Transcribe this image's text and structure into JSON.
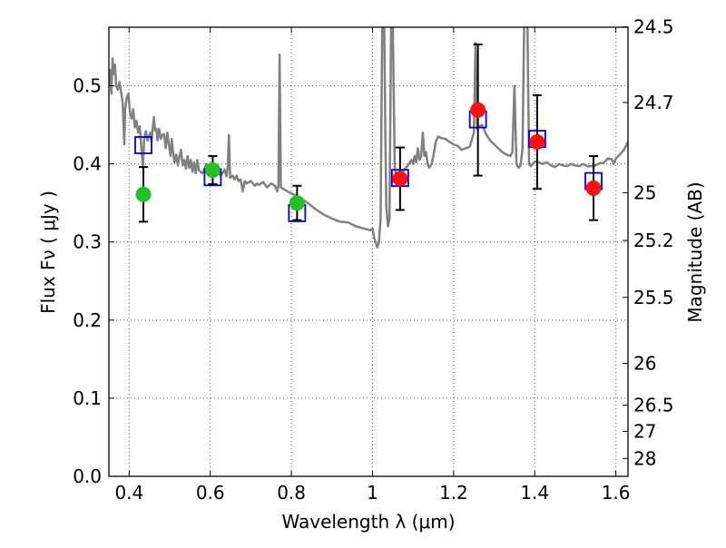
{
  "chart_data": {
    "type": "scatter",
    "title": "",
    "xlabel": "Wavelength  λ (μm)",
    "ylabel": "Flux  Fν  ( μJy )",
    "ylabel_right": "Magnitude (AB)",
    "xlim": [
      0.35,
      1.63
    ],
    "ylim": [
      0.0,
      0.575
    ],
    "grid": true,
    "x_ticks": [
      0.4,
      0.6,
      0.8,
      1.0,
      1.2,
      1.4,
      1.6
    ],
    "x_tick_labels": [
      "0.4",
      "0.6",
      "0.8",
      "1",
      "1.2",
      "1.4",
      "1.6"
    ],
    "y_ticks": [
      0.0,
      0.1,
      0.2,
      0.3,
      0.4,
      0.5
    ],
    "y_tick_labels": [
      "0.0",
      "0.1",
      "0.2",
      "0.3",
      "0.4",
      "0.5"
    ],
    "right_axis_ticks": [
      {
        "label": "24.5",
        "mag": 24.5
      },
      {
        "label": "24.7",
        "mag": 24.7
      },
      {
        "label": "25",
        "mag": 25.0
      },
      {
        "label": "25.2",
        "mag": 25.2
      },
      {
        "label": "25.5",
        "mag": 25.5
      },
      {
        "label": "26",
        "mag": 26.0
      },
      {
        "label": "26.5",
        "mag": 26.5
      },
      {
        "label": "27",
        "mag": 27.0
      },
      {
        "label": "28",
        "mag": 28.0
      }
    ],
    "observed_optical": {
      "marker": "filled-circle",
      "color": "#22c022",
      "points": [
        {
          "x": 0.435,
          "y": 0.361,
          "yerr": 0.035
        },
        {
          "x": 0.606,
          "y": 0.392,
          "yerr": 0.018
        },
        {
          "x": 0.814,
          "y": 0.35,
          "yerr": 0.022
        }
      ]
    },
    "observed_nir": {
      "marker": "filled-circle",
      "color": "#ff1010",
      "points": [
        {
          "x": 1.068,
          "y": 0.381,
          "yerr": 0.04
        },
        {
          "x": 1.26,
          "y": 0.469,
          "yerr": 0.084
        },
        {
          "x": 1.406,
          "y": 0.428,
          "yerr": 0.06
        },
        {
          "x": 1.545,
          "y": 0.369,
          "yerr": 0.041
        }
      ]
    },
    "model_photometry": {
      "marker": "open-square",
      "color": "#0000dd",
      "points": [
        {
          "x": 0.435,
          "y": 0.424
        },
        {
          "x": 0.606,
          "y": 0.383
        },
        {
          "x": 0.814,
          "y": 0.337
        },
        {
          "x": 1.068,
          "y": 0.382
        },
        {
          "x": 1.26,
          "y": 0.457
        },
        {
          "x": 1.406,
          "y": 0.432
        },
        {
          "x": 1.545,
          "y": 0.378
        }
      ]
    },
    "model_spectrum": {
      "type": "line",
      "color": "#808080",
      "points": [
        [
          0.35,
          0.5
        ],
        [
          0.353,
          0.52
        ],
        [
          0.356,
          0.49
        ],
        [
          0.359,
          0.535
        ],
        [
          0.362,
          0.515
        ],
        [
          0.365,
          0.527
        ],
        [
          0.368,
          0.5
        ],
        [
          0.372,
          0.495
        ],
        [
          0.376,
          0.505
        ],
        [
          0.38,
          0.492
        ],
        [
          0.384,
          0.478
        ],
        [
          0.388,
          0.425
        ],
        [
          0.39,
          0.47
        ],
        [
          0.394,
          0.485
        ],
        [
          0.398,
          0.49
        ],
        [
          0.402,
          0.466
        ],
        [
          0.406,
          0.458
        ],
        [
          0.41,
          0.47
        ],
        [
          0.414,
          0.447
        ],
        [
          0.418,
          0.455
        ],
        [
          0.422,
          0.44
        ],
        [
          0.426,
          0.448
        ],
        [
          0.43,
          0.42
        ],
        [
          0.434,
          0.395
        ],
        [
          0.437,
          0.432
        ],
        [
          0.441,
          0.442
        ],
        [
          0.445,
          0.43
        ],
        [
          0.449,
          0.436
        ],
        [
          0.452,
          0.44
        ],
        [
          0.455,
          0.428
        ],
        [
          0.458,
          0.446
        ],
        [
          0.461,
          0.46
        ],
        [
          0.464,
          0.443
        ],
        [
          0.467,
          0.445
        ],
        [
          0.47,
          0.43
        ],
        [
          0.474,
          0.445
        ],
        [
          0.478,
          0.432
        ],
        [
          0.482,
          0.437
        ],
        [
          0.486,
          0.438
        ],
        [
          0.49,
          0.42
        ],
        [
          0.494,
          0.44
        ],
        [
          0.498,
          0.425
        ],
        [
          0.502,
          0.41
        ],
        [
          0.505,
          0.432
        ],
        [
          0.508,
          0.415
        ],
        [
          0.512,
          0.402
        ],
        [
          0.516,
          0.412
        ],
        [
          0.52,
          0.398
        ],
        [
          0.524,
          0.41
        ],
        [
          0.528,
          0.418
        ],
        [
          0.532,
          0.398
        ],
        [
          0.536,
          0.405
        ],
        [
          0.54,
          0.394
        ],
        [
          0.544,
          0.41
        ],
        [
          0.548,
          0.395
        ],
        [
          0.552,
          0.405
        ],
        [
          0.556,
          0.39
        ],
        [
          0.56,
          0.402
        ],
        [
          0.564,
          0.388
        ],
        [
          0.568,
          0.405
        ],
        [
          0.572,
          0.392
        ],
        [
          0.576,
          0.39
        ],
        [
          0.58,
          0.388
        ],
        [
          0.585,
          0.392
        ],
        [
          0.59,
          0.4
        ],
        [
          0.595,
          0.392
        ],
        [
          0.6,
          0.388
        ],
        [
          0.605,
          0.385
        ],
        [
          0.61,
          0.388
        ],
        [
          0.615,
          0.387
        ],
        [
          0.62,
          0.392
        ],
        [
          0.625,
          0.385
        ],
        [
          0.63,
          0.388
        ],
        [
          0.635,
          0.393
        ],
        [
          0.64,
          0.384
        ],
        [
          0.643,
          0.395
        ],
        [
          0.646,
          0.437
        ],
        [
          0.649,
          0.382
        ],
        [
          0.655,
          0.385
        ],
        [
          0.66,
          0.38
        ],
        [
          0.665,
          0.385
        ],
        [
          0.67,
          0.378
        ],
        [
          0.675,
          0.38
        ],
        [
          0.68,
          0.365
        ],
        [
          0.685,
          0.378
        ],
        [
          0.69,
          0.375
        ],
        [
          0.7,
          0.378
        ],
        [
          0.71,
          0.372
        ],
        [
          0.715,
          0.375
        ],
        [
          0.72,
          0.373
        ],
        [
          0.73,
          0.377
        ],
        [
          0.74,
          0.37
        ],
        [
          0.75,
          0.375
        ],
        [
          0.76,
          0.372
        ],
        [
          0.765,
          0.365
        ],
        [
          0.768,
          0.372
        ],
        [
          0.771,
          0.54
        ],
        [
          0.774,
          0.37
        ],
        [
          0.78,
          0.368
        ],
        [
          0.79,
          0.365
        ],
        [
          0.8,
          0.362
        ],
        [
          0.81,
          0.36
        ],
        [
          0.82,
          0.357
        ],
        [
          0.84,
          0.35
        ],
        [
          0.86,
          0.342
        ],
        [
          0.88,
          0.335
        ],
        [
          0.9,
          0.33
        ],
        [
          0.92,
          0.326
        ],
        [
          0.94,
          0.325
        ],
        [
          0.96,
          0.32
        ],
        [
          0.98,
          0.317
        ],
        [
          0.995,
          0.315
        ],
        [
          1.0,
          0.317
        ],
        [
          1.004,
          0.305
        ],
        [
          1.008,
          0.3
        ],
        [
          1.012,
          0.293
        ],
        [
          1.016,
          0.3
        ],
        [
          1.02,
          0.33
        ],
        [
          1.024,
          0.58
        ],
        [
          1.029,
          0.58
        ],
        [
          1.032,
          0.42
        ],
        [
          1.034,
          0.345
        ],
        [
          1.038,
          0.32
        ],
        [
          1.042,
          0.33
        ],
        [
          1.046,
          0.58
        ],
        [
          1.05,
          0.58
        ],
        [
          1.055,
          0.395
        ],
        [
          1.06,
          0.38
        ],
        [
          1.066,
          0.385
        ],
        [
          1.072,
          0.388
        ],
        [
          1.078,
          0.392
        ],
        [
          1.084,
          0.396
        ],
        [
          1.09,
          0.4
        ],
        [
          1.096,
          0.405
        ],
        [
          1.1,
          0.4
        ],
        [
          1.104,
          0.41
        ],
        [
          1.108,
          0.402
        ],
        [
          1.112,
          0.42
        ],
        [
          1.116,
          0.405
        ],
        [
          1.12,
          0.41
        ],
        [
          1.124,
          0.44
        ],
        [
          1.128,
          0.41
        ],
        [
          1.132,
          0.415
        ],
        [
          1.136,
          0.4
        ],
        [
          1.14,
          0.395
        ],
        [
          1.146,
          0.4
        ],
        [
          1.15,
          0.41
        ],
        [
          1.156,
          0.428
        ],
        [
          1.162,
          0.435
        ],
        [
          1.17,
          0.433
        ],
        [
          1.18,
          0.432
        ],
        [
          1.19,
          0.428
        ],
        [
          1.2,
          0.425
        ],
        [
          1.21,
          0.423
        ],
        [
          1.22,
          0.418
        ],
        [
          1.23,
          0.42
        ],
        [
          1.24,
          0.422
        ],
        [
          1.25,
          0.44
        ],
        [
          1.254,
          0.555
        ],
        [
          1.258,
          0.445
        ],
        [
          1.263,
          0.448
        ],
        [
          1.27,
          0.45
        ],
        [
          1.28,
          0.438
        ],
        [
          1.29,
          0.43
        ],
        [
          1.3,
          0.425
        ],
        [
          1.31,
          0.42
        ],
        [
          1.32,
          0.415
        ],
        [
          1.33,
          0.412
        ],
        [
          1.34,
          0.41
        ],
        [
          1.345,
          0.415
        ],
        [
          1.35,
          0.5
        ],
        [
          1.355,
          0.4
        ],
        [
          1.36,
          0.395
        ],
        [
          1.365,
          0.398
        ],
        [
          1.37,
          0.42
        ],
        [
          1.374,
          0.58
        ],
        [
          1.382,
          0.58
        ],
        [
          1.386,
          0.4
        ],
        [
          1.39,
          0.397
        ],
        [
          1.4,
          0.403
        ],
        [
          1.41,
          0.402
        ],
        [
          1.42,
          0.4
        ],
        [
          1.43,
          0.402
        ],
        [
          1.44,
          0.398
        ],
        [
          1.45,
          0.396
        ],
        [
          1.46,
          0.4
        ],
        [
          1.47,
          0.398
        ],
        [
          1.48,
          0.397
        ],
        [
          1.49,
          0.4
        ],
        [
          1.5,
          0.398
        ],
        [
          1.51,
          0.397
        ],
        [
          1.52,
          0.4
        ],
        [
          1.53,
          0.397
        ],
        [
          1.54,
          0.397
        ],
        [
          1.55,
          0.398
        ],
        [
          1.56,
          0.401
        ],
        [
          1.57,
          0.401
        ],
        [
          1.58,
          0.407
        ],
        [
          1.59,
          0.406
        ],
        [
          1.595,
          0.4
        ],
        [
          1.6,
          0.407
        ],
        [
          1.61,
          0.412
        ],
        [
          1.62,
          0.418
        ],
        [
          1.63,
          0.428
        ]
      ]
    }
  }
}
